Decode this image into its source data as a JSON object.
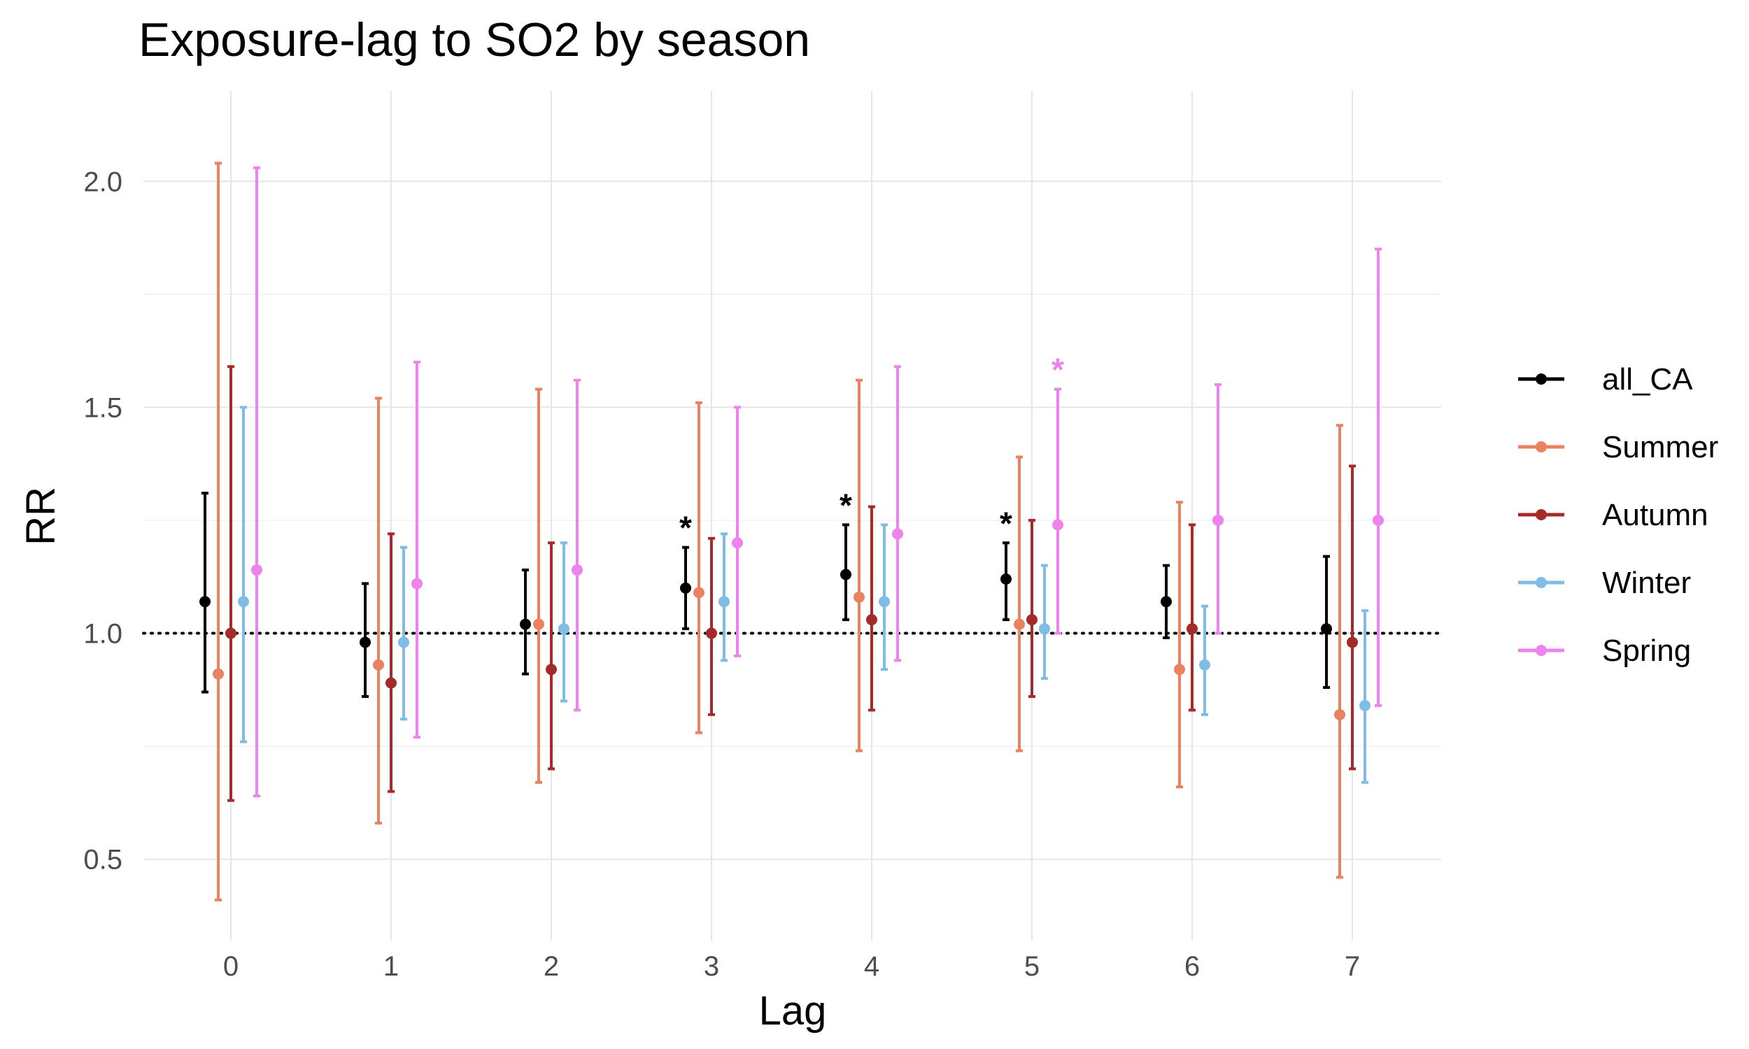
{
  "chart_data": {
    "type": "scatter",
    "title": "Exposure-lag to SO2 by season",
    "xlabel": "Lag",
    "ylabel": "RR",
    "categories": [
      "0",
      "1",
      "2",
      "3",
      "4",
      "5",
      "6",
      "7"
    ],
    "ylim": [
      0.32,
      2.2
    ],
    "yticks": [
      "0.5",
      "1.0",
      "1.5",
      "2.0"
    ],
    "reference_line": 1.0,
    "grid": true,
    "legend_position": "right",
    "series": [
      {
        "name": "all_CA",
        "color": "#000000",
        "values": [
          1.07,
          0.98,
          1.02,
          1.1,
          1.13,
          1.12,
          1.07,
          1.01
        ],
        "lower": [
          0.87,
          0.86,
          0.91,
          1.01,
          1.03,
          1.03,
          0.99,
          0.88
        ],
        "upper": [
          1.31,
          1.11,
          1.14,
          1.19,
          1.24,
          1.2,
          1.15,
          1.17
        ],
        "significant": [
          false,
          false,
          false,
          true,
          true,
          true,
          false,
          false
        ]
      },
      {
        "name": "Summer",
        "color": "#E8825F",
        "values": [
          0.91,
          0.93,
          1.02,
          1.09,
          1.08,
          1.02,
          0.92,
          0.82
        ],
        "lower": [
          0.41,
          0.58,
          0.67,
          0.78,
          0.74,
          0.74,
          0.66,
          0.46
        ],
        "upper": [
          2.04,
          1.52,
          1.54,
          1.51,
          1.56,
          1.39,
          1.29,
          1.46
        ],
        "significant": [
          false,
          false,
          false,
          false,
          false,
          false,
          false,
          false
        ]
      },
      {
        "name": "Autumn",
        "color": "#A52A2A",
        "values": [
          1.0,
          0.89,
          0.92,
          1.0,
          1.03,
          1.03,
          1.01,
          0.98
        ],
        "lower": [
          0.63,
          0.65,
          0.7,
          0.82,
          0.83,
          0.86,
          0.83,
          0.7
        ],
        "upper": [
          1.59,
          1.22,
          1.2,
          1.21,
          1.28,
          1.25,
          1.24,
          1.37
        ],
        "significant": [
          false,
          false,
          false,
          false,
          false,
          false,
          false,
          false
        ]
      },
      {
        "name": "Winter",
        "color": "#7FBCE6",
        "values": [
          1.07,
          0.98,
          1.01,
          1.07,
          1.07,
          1.01,
          0.93,
          0.84
        ],
        "lower": [
          0.76,
          0.81,
          0.85,
          0.94,
          0.92,
          0.9,
          0.82,
          0.67
        ],
        "upper": [
          1.5,
          1.19,
          1.2,
          1.22,
          1.24,
          1.15,
          1.06,
          1.05
        ],
        "significant": [
          false,
          false,
          false,
          false,
          false,
          false,
          false,
          false
        ]
      },
      {
        "name": "Spring",
        "color": "#EE82EE",
        "values": [
          1.14,
          1.11,
          1.14,
          1.2,
          1.22,
          1.24,
          1.25,
          1.25
        ],
        "lower": [
          0.64,
          0.77,
          0.83,
          0.95,
          0.94,
          1.0,
          1.0,
          0.84
        ],
        "upper": [
          2.03,
          1.6,
          1.56,
          1.5,
          1.59,
          1.54,
          1.55,
          1.85
        ],
        "significant": [
          false,
          false,
          false,
          false,
          false,
          true,
          false,
          false
        ]
      }
    ],
    "significance_marker": "*"
  }
}
